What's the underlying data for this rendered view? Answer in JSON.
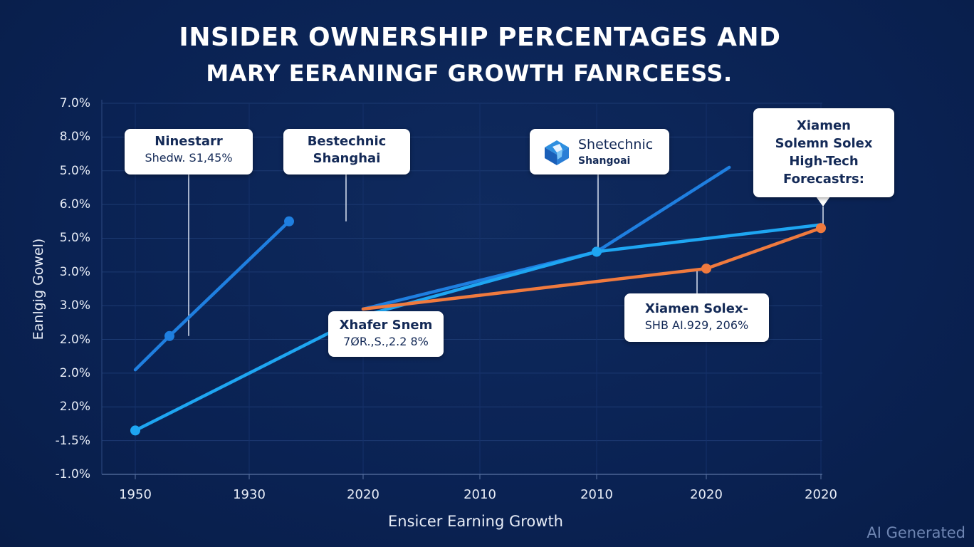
{
  "title_lines": [
    "INSIDER OWNERSHIP PERCENTAGES AND",
    "MARY EERANINGF GROWTH FANRCEESS."
  ],
  "watermark": "AI Generated",
  "colors": {
    "background": "#0c2456",
    "series_dark_blue": "#1f7fe0",
    "series_light_blue": "#1ea6f2",
    "series_orange": "#f07a3e",
    "callout_bg": "#ffffff",
    "callout_text": "#142a57"
  },
  "callouts": [
    {
      "id": "ninestarr",
      "name": "Ninestarr",
      "sub": "Shedw. S1,45%"
    },
    {
      "id": "bestechnic",
      "name": "Bestechnic",
      "sub": "Shanghai"
    },
    {
      "id": "shetechnic",
      "name": "Shetechnic",
      "sub": "Shangoai",
      "icon": "cube-logo-icon"
    },
    {
      "id": "xiamen-forecast",
      "lines": [
        "Xiamen",
        "Solemn Solex",
        "High-Tech",
        "Forecastrs:"
      ]
    },
    {
      "id": "xhafer",
      "name": "Xhafer Snem",
      "sub": "7ØR.,S.,2.2 8%"
    },
    {
      "id": "xiamen-solex",
      "name": "Xiamen Solex-",
      "sub": "SHB AI.929, 206%"
    }
  ],
  "chart_data": {
    "type": "line",
    "title": "INSIDER OWNERSHIP PERCENTAGES AND MARY EERANINGF GROWTH FANRCEESS.",
    "xlabel": "Ensicer Earning Growth",
    "ylabel": "Eanlgig Gowel)",
    "x_tick_labels": [
      "1950",
      "1930",
      "2020",
      "2010",
      "2010",
      "2020",
      "2020"
    ],
    "y_tick_labels": [
      "7.0%",
      "8.0%",
      "5.0%",
      "6.0%",
      "5.0%",
      "3.0%",
      "3.0%",
      "2.0%",
      "2.0%",
      "2.0%",
      "-1.5%",
      "-1.0%"
    ],
    "x_range": [
      0,
      6
    ],
    "y_range_index": [
      0,
      11
    ],
    "grid": true,
    "legend": "none",
    "note": "Points expressed as (tick position index on x, tick position index on y counted from bottom = 0)",
    "series": [
      {
        "name": "Ninestarr / Bestechnic",
        "color": "#1f7fe0",
        "points": [
          [
            0.0,
            3.1
          ],
          [
            0.3,
            4.1
          ],
          [
            1.35,
            7.5
          ]
        ],
        "markers": [
          1,
          2
        ]
      },
      {
        "name": "Shetechnic / Xiamen High-Tech",
        "color": "#1f7fe0",
        "points": [
          [
            2.0,
            4.9
          ],
          [
            4.0,
            6.6
          ],
          [
            5.2,
            9.1
          ]
        ],
        "markers": [
          1
        ]
      },
      {
        "name": "Xhafer Snem / Shetechnic",
        "color": "#1ea6f2",
        "points": [
          [
            0.0,
            1.3
          ],
          [
            2.0,
            4.7
          ],
          [
            4.0,
            6.6
          ],
          [
            6.0,
            7.4
          ]
        ],
        "markers": [
          0,
          2
        ]
      },
      {
        "name": "Xiamen Solex",
        "color": "#f07a3e",
        "points": [
          [
            2.0,
            4.9
          ],
          [
            5.0,
            6.1
          ],
          [
            6.0,
            7.3
          ]
        ],
        "markers": [
          1,
          2
        ]
      }
    ]
  }
}
